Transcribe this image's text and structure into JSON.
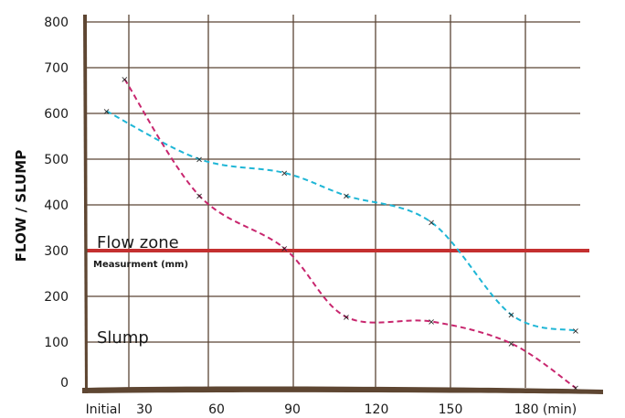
{
  "chart_data": {
    "type": "line",
    "ylabel": "FLOW / SLUMP",
    "ylim": [
      0,
      800
    ],
    "xlim": [
      0,
      190
    ],
    "y_ticks": [
      800,
      700,
      600,
      500,
      400,
      300,
      200,
      100,
      0
    ],
    "x_ticks": [
      {
        "label": "Initial",
        "value": 0
      },
      {
        "label": "30",
        "value": 30
      },
      {
        "label": "60",
        "value": 60
      },
      {
        "label": "90",
        "value": 90
      },
      {
        "label": "120",
        "value": 120
      },
      {
        "label": "150",
        "value": 150
      },
      {
        "label": "180 (min)",
        "value": 180
      }
    ],
    "grid": true,
    "series": [
      {
        "color": "#1fb6d6",
        "x": [
          8,
          44,
          77,
          101,
          134,
          165,
          190
        ],
        "y": [
          605,
          500,
          470,
          420,
          362,
          160,
          125
        ]
      },
      {
        "color": "#c8266e",
        "x": [
          15,
          44,
          77,
          101,
          134,
          165,
          190
        ],
        "y": [
          675,
          420,
          305,
          155,
          145,
          97,
          0
        ]
      }
    ],
    "reference_line": {
      "y": 300,
      "color": "#c43030"
    },
    "annotations": {
      "flow_zone": "Flow zone",
      "measurement": "Measurment (mm)",
      "slump": "Slump"
    }
  }
}
